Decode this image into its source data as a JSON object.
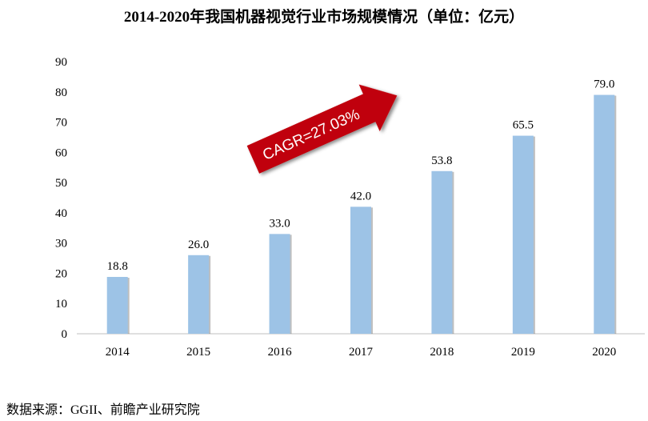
{
  "chart_data": {
    "type": "bar",
    "title": "2014-2020年我国机器视觉行业市场规模情况（单位：亿元）",
    "categories": [
      "2014",
      "2015",
      "2016",
      "2017",
      "2018",
      "2019",
      "2020"
    ],
    "values": [
      18.8,
      26.0,
      33.0,
      42.0,
      53.8,
      65.5,
      79.0
    ],
    "value_labels": [
      "18.8",
      "26.0",
      "33.0",
      "42.0",
      "53.8",
      "65.5",
      "79.0"
    ],
    "yticks": [
      0,
      10,
      20,
      30,
      40,
      50,
      60,
      70,
      80,
      90
    ],
    "ylim": [
      0,
      90
    ],
    "xlabel": "",
    "ylabel": "",
    "grid": false,
    "legend": "none",
    "annotation": "CAGR=27.03%",
    "colors": {
      "bar": "#9dc3e6",
      "bar_shadow": "#8a8a8a",
      "arrow": "#c0000b",
      "arrow_text": "#ffffff"
    }
  },
  "source": "数据来源：GGII、前瞻产业研究院"
}
